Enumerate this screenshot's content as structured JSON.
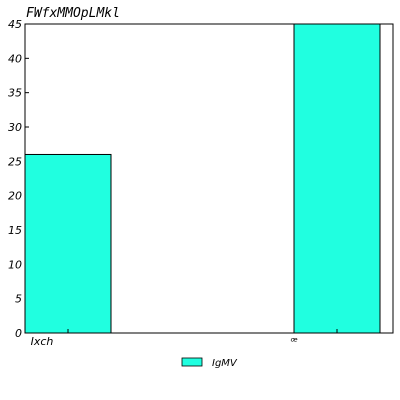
{
  "chart_data": {
    "type": "bar",
    "title": "FWfxMMOpLMkl",
    "categories": [
      "Ixch",
      "ꟹ"
    ],
    "series": [
      {
        "name": "IgMV",
        "values": [
          26,
          45
        ]
      }
    ],
    "ylim": [
      0,
      45
    ],
    "yticks": [
      0,
      5,
      10,
      15,
      20,
      25,
      30,
      35,
      40,
      45
    ],
    "xlabel": "",
    "ylabel": "",
    "grid": false,
    "legend_position": "bottom-center",
    "bar_color": "#20ffe0",
    "edge_color": "#000000"
  }
}
